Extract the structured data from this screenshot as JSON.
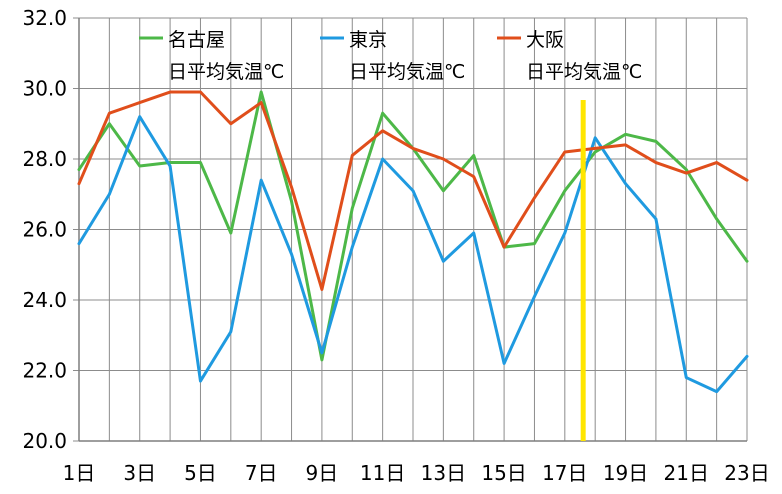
{
  "chart_data": {
    "type": "line",
    "title": "",
    "xlabel": "",
    "ylabel": "",
    "x": [
      1,
      2,
      3,
      4,
      5,
      6,
      7,
      8,
      9,
      10,
      11,
      12,
      13,
      14,
      15,
      16,
      17,
      18,
      19,
      20,
      21,
      22,
      23
    ],
    "x_tick_labels": [
      "1日",
      "3日",
      "5日",
      "7日",
      "9日",
      "11日",
      "13日",
      "15日",
      "17日",
      "19日",
      "21日",
      "23日"
    ],
    "y_tick_labels": [
      "20.0",
      "22.0",
      "24.0",
      "26.0",
      "28.0",
      "30.0",
      "32.0"
    ],
    "ylim": [
      20,
      32
    ],
    "grid": "vertical lines and horizontal lines every 2.0",
    "legend": "top",
    "series": [
      {
        "name": "名古屋",
        "name_line2": "日平均気温℃",
        "color": "#4db848",
        "values": [
          27.7,
          29.0,
          27.8,
          27.9,
          27.9,
          25.9,
          29.9,
          26.8,
          22.3,
          26.6,
          29.3,
          28.3,
          27.1,
          28.1,
          25.5,
          25.6,
          27.1,
          28.2,
          28.7,
          28.5,
          27.7,
          26.3,
          25.1
        ]
      },
      {
        "name": "東京",
        "name_line2": "日平均気温℃",
        "color": "#1f9ae0",
        "values": [
          25.6,
          27.0,
          29.2,
          27.8,
          21.7,
          23.1,
          27.4,
          25.3,
          22.5,
          25.5,
          28.0,
          27.1,
          25.1,
          25.9,
          22.2,
          24.1,
          25.9,
          28.6,
          27.3,
          26.3,
          21.8,
          21.4,
          22.4
        ]
      },
      {
        "name": "大阪",
        "name_line2": "日平均気温℃",
        "color": "#e04e1b",
        "values": [
          27.3,
          29.3,
          29.6,
          29.9,
          29.9,
          29.0,
          29.6,
          27.2,
          24.3,
          28.1,
          28.8,
          28.3,
          28.0,
          27.5,
          25.5,
          26.9,
          28.2,
          28.3,
          28.4,
          27.9,
          27.6,
          27.9,
          27.4
        ]
      }
    ],
    "marker_line": {
      "x": 18,
      "color": "#ffe600"
    }
  }
}
